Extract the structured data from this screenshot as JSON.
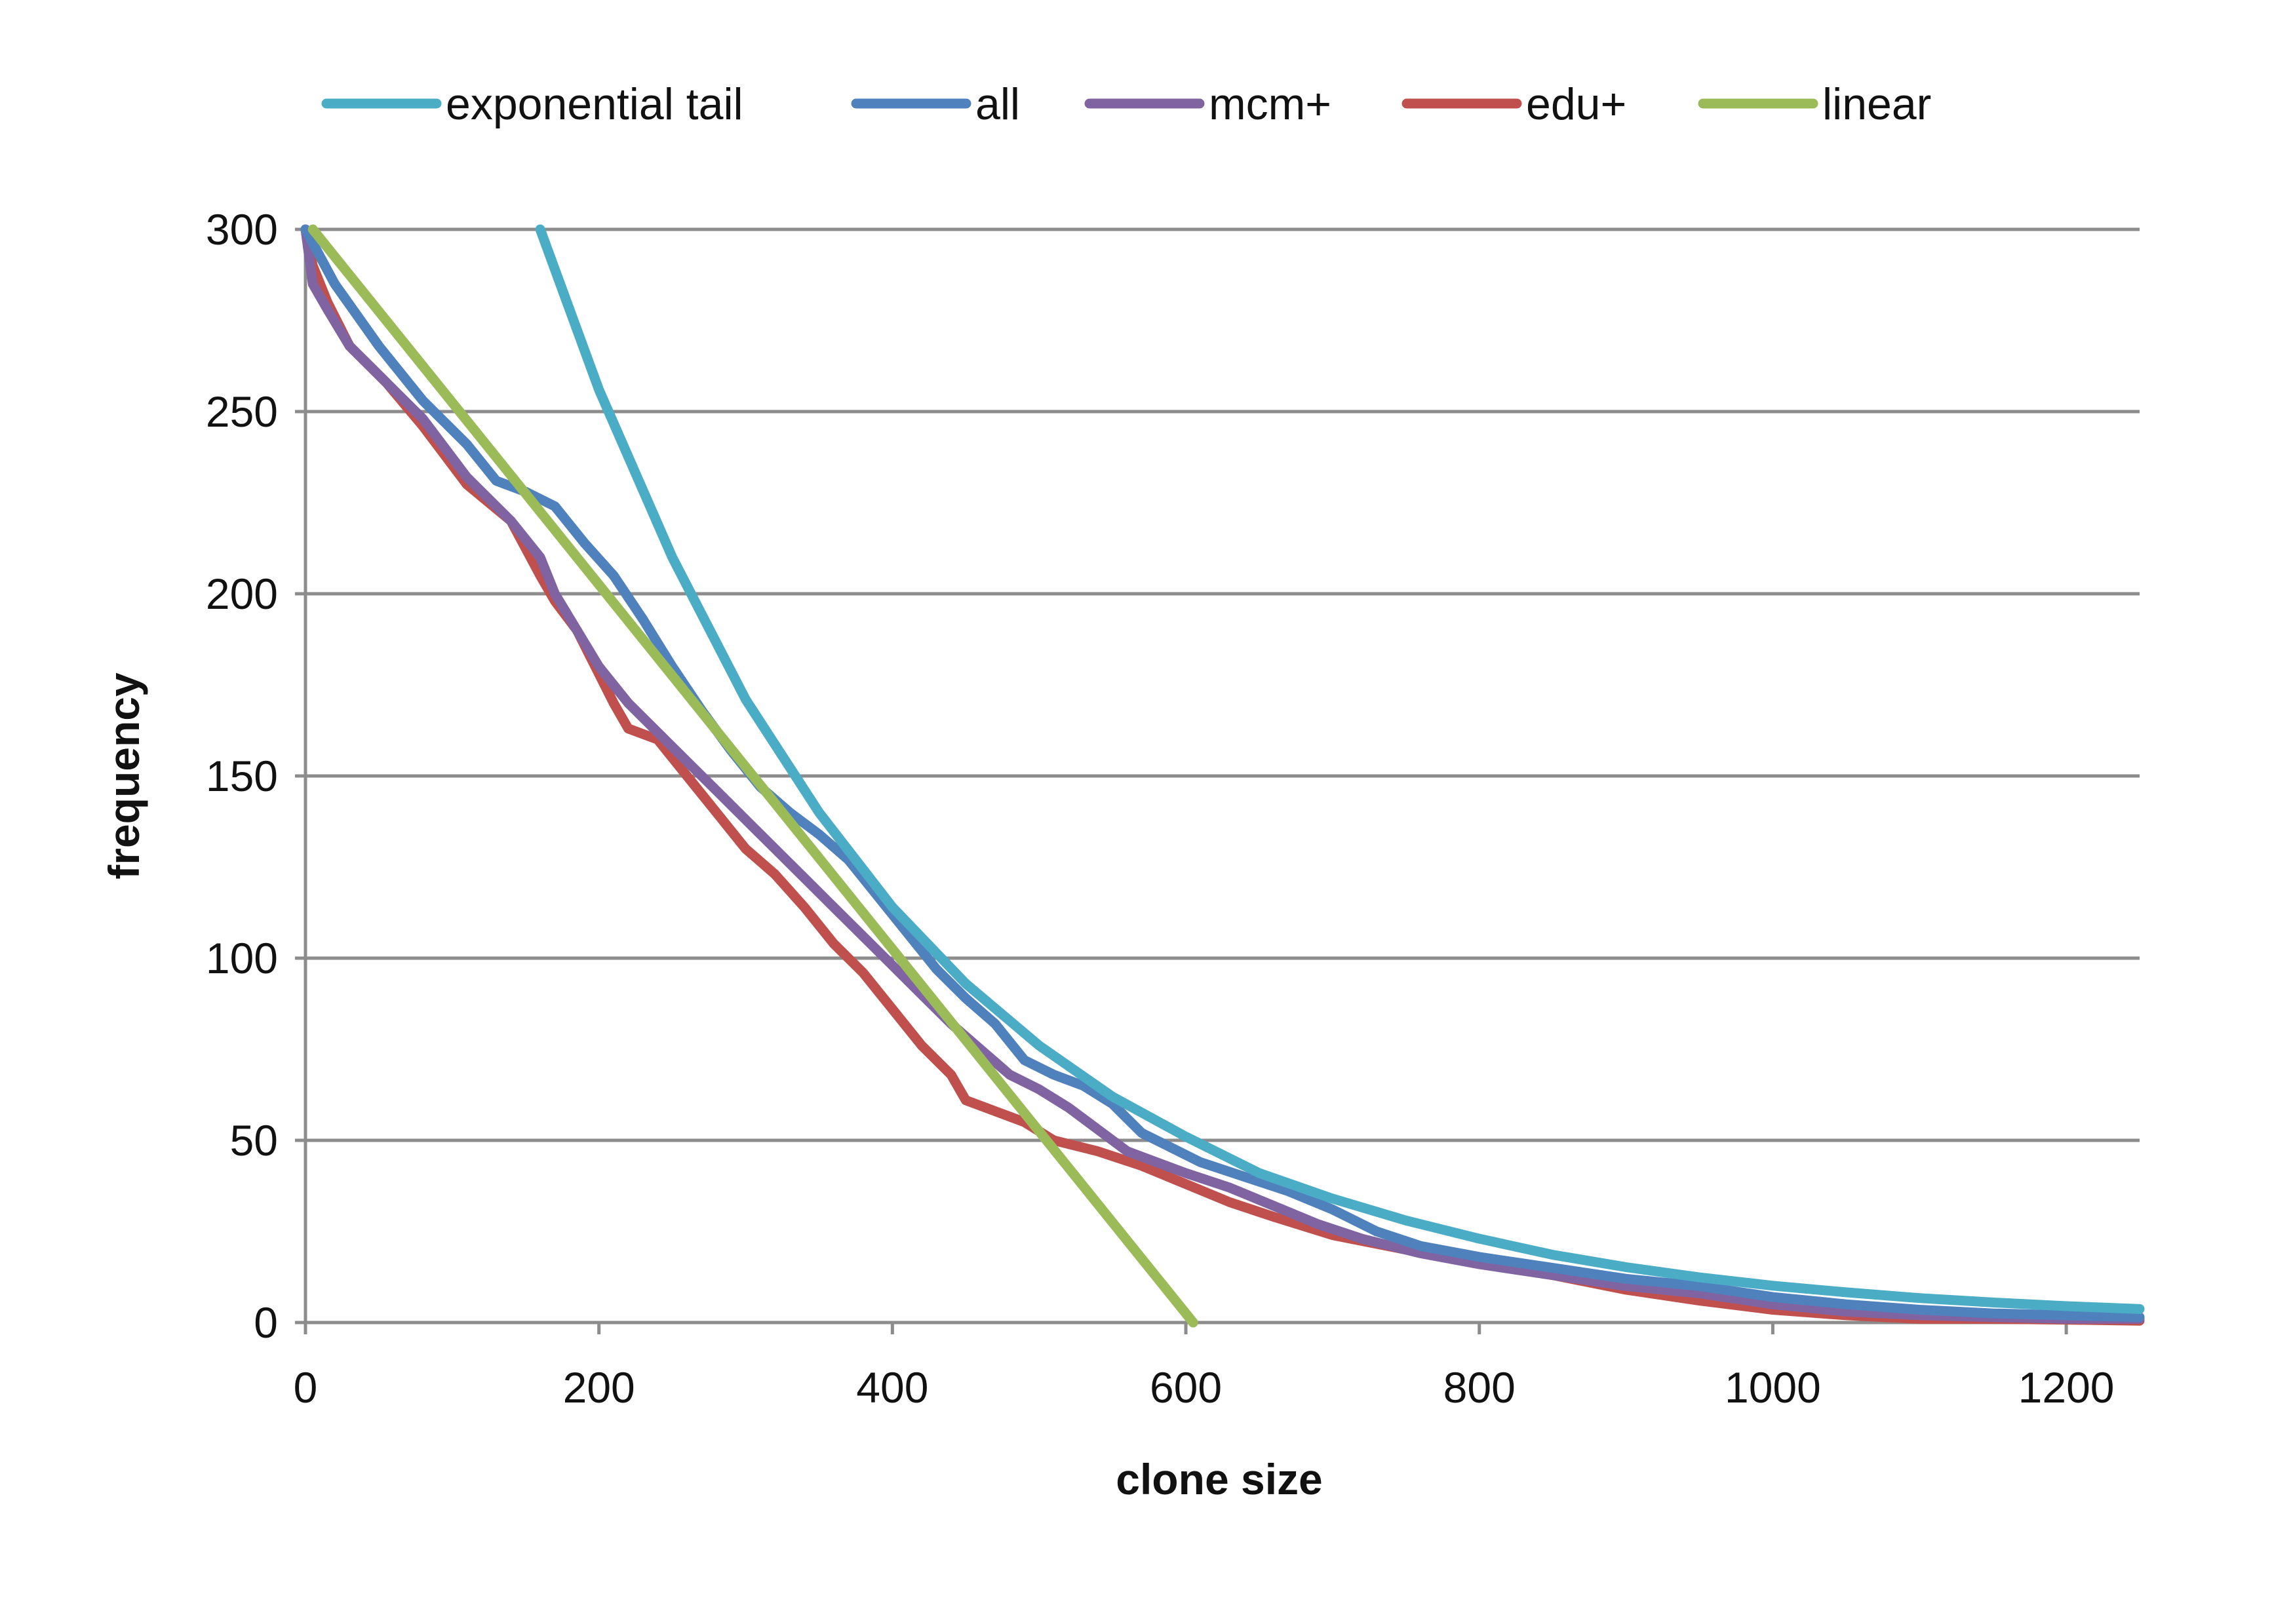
{
  "chart_data": {
    "type": "line",
    "title": "",
    "xlabel": "clone size",
    "ylabel": "frequency",
    "xlim": [
      0,
      1250
    ],
    "ylim": [
      0,
      300
    ],
    "xticks": [
      0,
      200,
      400,
      600,
      800,
      1000,
      1200
    ],
    "yticks": [
      0,
      50,
      100,
      150,
      200,
      250,
      300
    ],
    "grid": {
      "horizontal": true,
      "vertical": false
    },
    "legend_position": "top",
    "series": [
      {
        "name": "exponential tail",
        "color": "#4BACC6",
        "x": [
          160,
          200,
          250,
          300,
          350,
          400,
          450,
          500,
          550,
          600,
          650,
          700,
          750,
          800,
          850,
          900,
          950,
          1000,
          1050,
          1100,
          1150,
          1200,
          1250
        ],
        "y": [
          300,
          256,
          210,
          171,
          140,
          114,
          93,
          76,
          62,
          51,
          41,
          34,
          28,
          23,
          18.6,
          15.2,
          12.4,
          10.1,
          8.3,
          6.7,
          5.5,
          4.5,
          3.7
        ]
      },
      {
        "name": "all",
        "color": "#4F81BD",
        "x": [
          0,
          20,
          50,
          80,
          110,
          130,
          150,
          170,
          190,
          210,
          230,
          250,
          270,
          290,
          310,
          330,
          350,
          370,
          390,
          410,
          430,
          450,
          470,
          490,
          510,
          530,
          550,
          570,
          590,
          610,
          640,
          670,
          700,
          730,
          760,
          800,
          850,
          900,
          950,
          1000,
          1050,
          1100,
          1150,
          1200,
          1250
        ],
        "y": [
          300,
          285,
          268,
          253,
          241,
          231,
          228,
          224,
          214,
          205,
          193,
          180,
          168,
          157,
          147,
          140,
          134,
          127,
          117,
          107,
          97,
          89,
          82,
          72,
          68,
          65,
          60,
          52,
          48,
          44,
          40,
          36,
          31,
          25,
          21,
          18,
          15,
          12,
          10,
          7,
          5,
          3.5,
          2.5,
          2,
          1.5
        ]
      },
      {
        "name": "mcm+",
        "color": "#8064A2",
        "x": [
          0,
          5,
          15,
          30,
          55,
          80,
          110,
          140,
          160,
          170,
          185,
          200,
          220,
          240,
          260,
          280,
          300,
          320,
          340,
          360,
          380,
          400,
          420,
          440,
          460,
          480,
          500,
          520,
          540,
          560,
          580,
          600,
          630,
          660,
          690,
          720,
          760,
          800,
          850,
          900,
          950,
          1000,
          1050,
          1100,
          1150,
          1200,
          1250
        ],
        "y": [
          300,
          285,
          278,
          268,
          258,
          248,
          232,
          220,
          210,
          200,
          190,
          180,
          170,
          162,
          154,
          146,
          138,
          130,
          122,
          114,
          106,
          98,
          90,
          82,
          75,
          68,
          64,
          59,
          53,
          47,
          44,
          41,
          37,
          32,
          27,
          23,
          19,
          16,
          13,
          10,
          8,
          5,
          3,
          2,
          1.5,
          1,
          1
        ]
      },
      {
        "name": "edu+",
        "color": "#C0504D",
        "x": [
          0,
          5,
          15,
          30,
          55,
          80,
          110,
          140,
          160,
          170,
          185,
          200,
          210,
          220,
          240,
          260,
          280,
          300,
          320,
          340,
          360,
          380,
          400,
          420,
          440,
          450,
          470,
          490,
          510,
          540,
          570,
          600,
          630,
          660,
          700,
          750,
          800,
          850,
          900,
          950,
          1000,
          1050,
          1100,
          1150,
          1200,
          1250
        ],
        "y": [
          300,
          290,
          280,
          268,
          258,
          246,
          230,
          220,
          205,
          198,
          190,
          178,
          170,
          163,
          160,
          150,
          140,
          130,
          123,
          114,
          104,
          96,
          86,
          76,
          68,
          61,
          58,
          55,
          50,
          47,
          43,
          38,
          33,
          29,
          24,
          20,
          17,
          13,
          9,
          6,
          3.5,
          2,
          1,
          1,
          0.8,
          0.5
        ]
      },
      {
        "name": "linear",
        "color": "#9BBB59",
        "x": [
          5,
          605
        ],
        "y": [
          300,
          0
        ]
      }
    ]
  }
}
